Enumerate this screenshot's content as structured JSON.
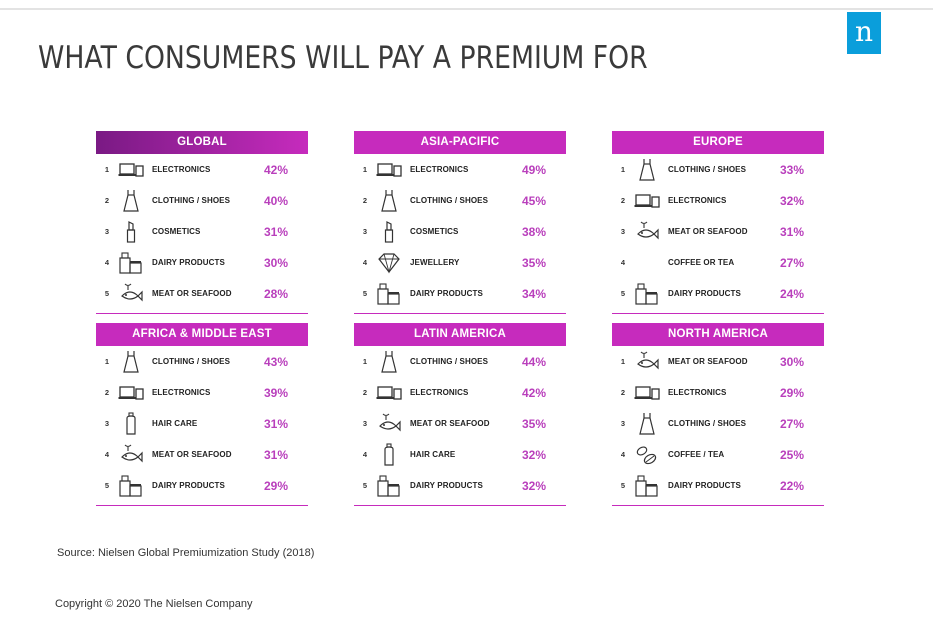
{
  "brand": {
    "logo_letter": "n",
    "logo_color": "#0a9edb"
  },
  "title": "WHAT CONSUMERS WILL PAY A PREMIUM FOR",
  "accent_color": "#c62bbd",
  "regions": [
    {
      "name": "GLOBAL",
      "items": [
        {
          "rank": "1",
          "icon": "electronics-icon",
          "label": "ELECTRONICS",
          "pct": "42%"
        },
        {
          "rank": "2",
          "icon": "dress-icon",
          "label": "CLOTHING / SHOES",
          "pct": "40%"
        },
        {
          "rank": "3",
          "icon": "lipstick-icon",
          "label": "COSMETICS",
          "pct": "31%"
        },
        {
          "rank": "4",
          "icon": "dairy-icon",
          "label": "DAIRY PRODUCTS",
          "pct": "30%"
        },
        {
          "rank": "5",
          "icon": "seafood-icon",
          "label": "MEAT OR SEAFOOD",
          "pct": "28%"
        }
      ]
    },
    {
      "name": "ASIA-PACIFIC",
      "items": [
        {
          "rank": "1",
          "icon": "electronics-icon",
          "label": "ELECTRONICS",
          "pct": "49%"
        },
        {
          "rank": "2",
          "icon": "dress-icon",
          "label": "CLOTHING / SHOES",
          "pct": "45%"
        },
        {
          "rank": "3",
          "icon": "lipstick-icon",
          "label": "COSMETICS",
          "pct": "38%"
        },
        {
          "rank": "4",
          "icon": "diamond-icon",
          "label": "JEWELLERY",
          "pct": "35%"
        },
        {
          "rank": "5",
          "icon": "dairy-icon",
          "label": "DAIRY PRODUCTS",
          "pct": "34%"
        }
      ]
    },
    {
      "name": "EUROPE",
      "items": [
        {
          "rank": "1",
          "icon": "dress-icon",
          "label": "CLOTHING / SHOES",
          "pct": "33%"
        },
        {
          "rank": "2",
          "icon": "electronics-icon",
          "label": "ELECTRONICS",
          "pct": "32%"
        },
        {
          "rank": "3",
          "icon": "seafood-icon",
          "label": "MEAT OR SEAFOOD",
          "pct": "31%"
        },
        {
          "rank": "4",
          "icon": "none",
          "label": "COFFEE OR TEA",
          "pct": "27%"
        },
        {
          "rank": "5",
          "icon": "dairy-icon",
          "label": "DAIRY PRODUCTS",
          "pct": "24%"
        }
      ]
    },
    {
      "name": "AFRICA & MIDDLE EAST",
      "items": [
        {
          "rank": "1",
          "icon": "dress-icon",
          "label": "CLOTHING / SHOES",
          "pct": "43%"
        },
        {
          "rank": "2",
          "icon": "electronics-icon",
          "label": "ELECTRONICS",
          "pct": "39%"
        },
        {
          "rank": "3",
          "icon": "bottle-icon",
          "label": "HAIR CARE",
          "pct": "31%"
        },
        {
          "rank": "4",
          "icon": "seafood-icon",
          "label": "MEAT OR SEAFOOD",
          "pct": "31%"
        },
        {
          "rank": "5",
          "icon": "dairy-icon",
          "label": "DAIRY PRODUCTS",
          "pct": "29%"
        }
      ]
    },
    {
      "name": "LATIN AMERICA",
      "items": [
        {
          "rank": "1",
          "icon": "dress-icon",
          "label": "CLOTHING / SHOES",
          "pct": "44%"
        },
        {
          "rank": "2",
          "icon": "electronics-icon",
          "label": "ELECTRONICS",
          "pct": "42%"
        },
        {
          "rank": "3",
          "icon": "seafood-icon",
          "label": "MEAT OR SEAFOOD",
          "pct": "35%"
        },
        {
          "rank": "4",
          "icon": "bottle-icon",
          "label": "HAIR CARE",
          "pct": "32%"
        },
        {
          "rank": "5",
          "icon": "dairy-icon",
          "label": "DAIRY PRODUCTS",
          "pct": "32%"
        }
      ]
    },
    {
      "name": "NORTH AMERICA",
      "items": [
        {
          "rank": "1",
          "icon": "seafood-icon",
          "label": "MEAT OR SEAFOOD",
          "pct": "30%"
        },
        {
          "rank": "2",
          "icon": "electronics-icon",
          "label": "ELECTRONICS",
          "pct": "29%"
        },
        {
          "rank": "3",
          "icon": "dress-icon",
          "label": "CLOTHING / SHOES",
          "pct": "27%"
        },
        {
          "rank": "4",
          "icon": "coffee-bean-icon",
          "label": "COFFEE / TEA",
          "pct": "25%"
        },
        {
          "rank": "5",
          "icon": "dairy-icon",
          "label": "DAIRY PRODUCTS",
          "pct": "22%"
        }
      ]
    }
  ],
  "source": "Source: Nielsen Global Premiumization Study (2018)",
  "copyright": "Copyright © 2020 The Nielsen Company"
}
